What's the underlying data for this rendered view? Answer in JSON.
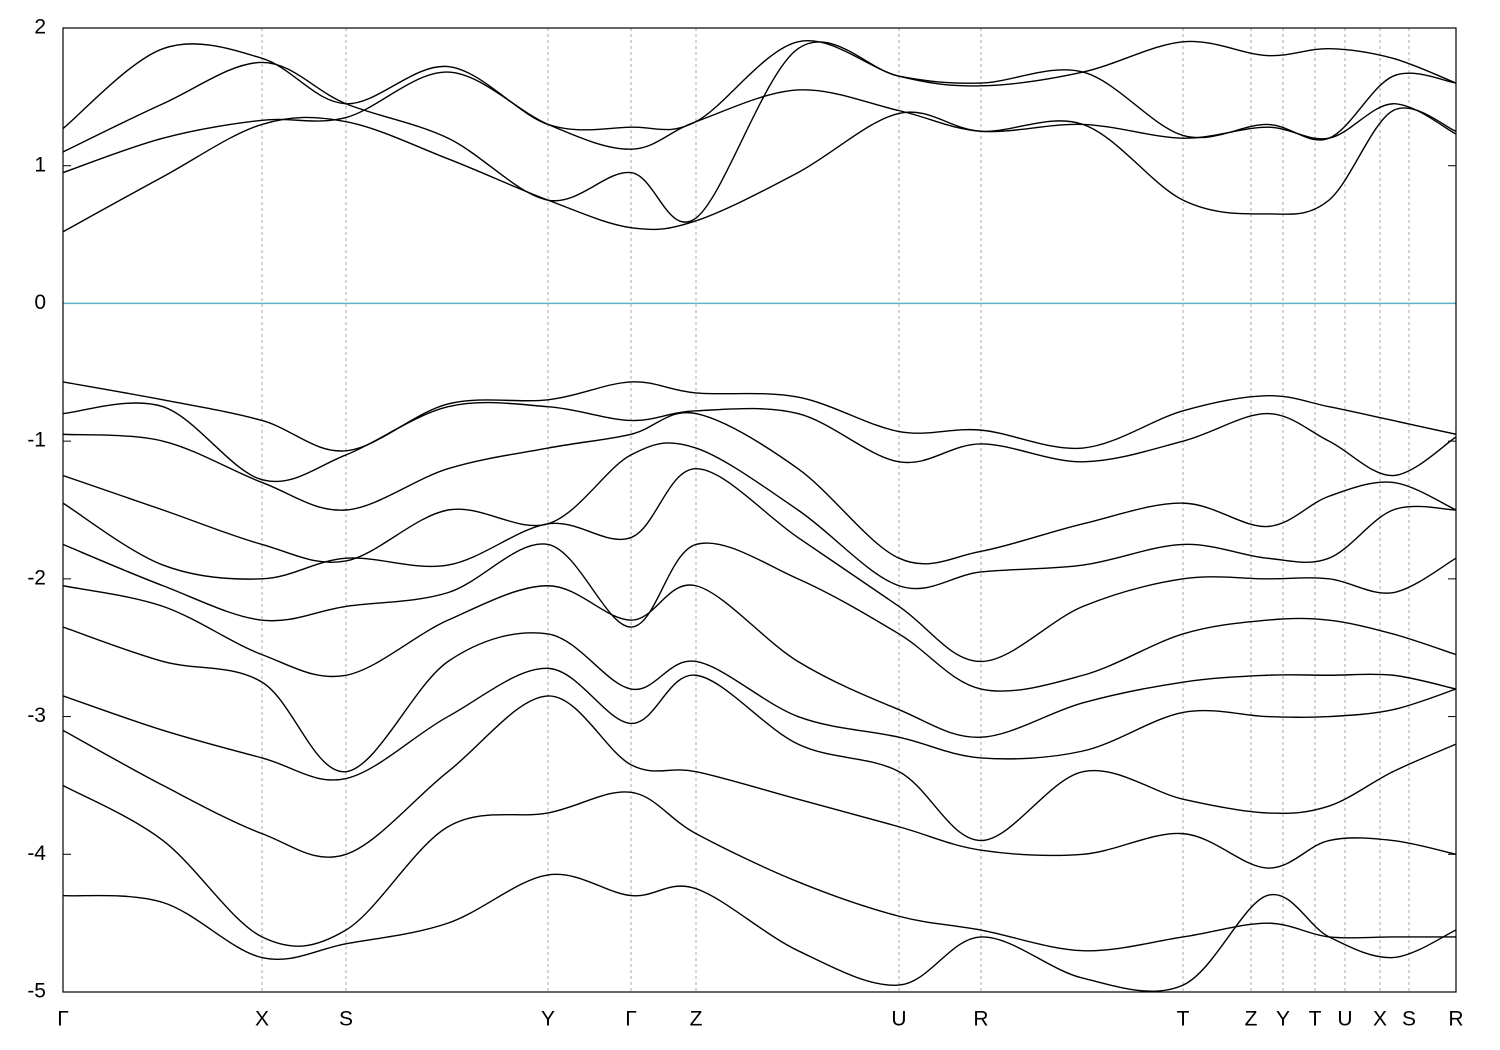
{
  "chart_data": {
    "type": "line",
    "x": [
      0,
      100,
      199,
      283,
      385,
      485,
      568,
      633,
      735,
      836,
      918,
      1020,
      1120,
      1204,
      1266,
      1330,
      1393
    ],
    "xlim": [
      0,
      1393
    ],
    "xticks": [
      {
        "value": 0,
        "label": "Γ"
      },
      {
        "value": 199,
        "label": "X"
      },
      {
        "value": 283,
        "label": "S"
      },
      {
        "value": 485,
        "label": "Y"
      },
      {
        "value": 568,
        "label": "Γ"
      },
      {
        "value": 633,
        "label": "Z"
      },
      {
        "value": 836,
        "label": "U"
      },
      {
        "value": 918,
        "label": "R"
      },
      {
        "value": 1120,
        "label": "T"
      },
      {
        "value": 1188,
        "label": "Z"
      },
      {
        "value": 1220,
        "label": "Y"
      },
      {
        "value": 1252,
        "label": "T"
      },
      {
        "value": 1282,
        "label": "U"
      },
      {
        "value": 1317,
        "label": "X"
      },
      {
        "value": 1346,
        "label": "S"
      },
      {
        "value": 1393,
        "label": "R"
      }
    ],
    "ylim": [
      -5,
      2
    ],
    "yticks": [
      -5,
      -4,
      -3,
      -2,
      -1,
      0,
      1,
      2
    ],
    "grid": true,
    "reference_line": {
      "value": 0,
      "color": "#5ab4c8"
    },
    "series": [
      {
        "color": "#000000",
        "values": [
          0.52,
          0.92,
          1.3,
          1.32,
          1.05,
          0.75,
          0.55,
          0.6,
          0.95,
          1.38,
          1.25,
          1.3,
          0.75,
          0.65,
          0.75,
          1.4,
          1.25
        ]
      },
      {
        "color": "#000000",
        "values": [
          0.95,
          1.2,
          1.33,
          1.35,
          1.68,
          1.3,
          1.12,
          1.32,
          1.55,
          1.4,
          1.25,
          1.3,
          1.2,
          1.28,
          1.2,
          1.45,
          1.23
        ]
      },
      {
        "color": "#000000",
        "values": [
          1.1,
          1.45,
          1.75,
          1.45,
          1.2,
          0.75,
          0.95,
          0.62,
          1.85,
          1.65,
          1.6,
          1.68,
          1.22,
          1.3,
          1.2,
          1.65,
          1.6
        ]
      },
      {
        "color": "#000000",
        "values": [
          1.27,
          1.85,
          1.78,
          1.45,
          1.72,
          1.3,
          1.28,
          1.32,
          1.9,
          1.65,
          1.58,
          1.68,
          1.9,
          1.8,
          1.85,
          1.78,
          1.6
        ]
      },
      {
        "color": "#000000",
        "values": [
          -0.57,
          -0.7,
          -0.85,
          -1.07,
          -0.73,
          -0.7,
          -0.57,
          -0.65,
          -0.68,
          -0.93,
          -0.92,
          -1.05,
          -0.78,
          -0.67,
          -0.75,
          -0.85,
          -0.95
        ]
      },
      {
        "color": "#000000",
        "values": [
          -0.8,
          -0.75,
          -1.28,
          -1.1,
          -0.75,
          -0.75,
          -0.85,
          -0.78,
          -0.8,
          -1.15,
          -1.02,
          -1.15,
          -1.0,
          -0.8,
          -1.0,
          -1.25,
          -0.97
        ]
      },
      {
        "color": "#000000",
        "values": [
          -0.95,
          -1.0,
          -1.3,
          -1.5,
          -1.2,
          -1.05,
          -0.95,
          -0.8,
          -1.2,
          -1.85,
          -1.8,
          -1.6,
          -1.45,
          -1.62,
          -1.4,
          -1.3,
          -1.5
        ]
      },
      {
        "color": "#000000",
        "values": [
          -1.25,
          -1.5,
          -1.75,
          -1.87,
          -1.5,
          -1.6,
          -1.1,
          -1.05,
          -1.5,
          -2.05,
          -1.95,
          -1.9,
          -1.75,
          -1.85,
          -1.85,
          -1.5,
          -1.5
        ]
      },
      {
        "color": "#000000",
        "values": [
          -1.45,
          -1.9,
          -2.0,
          -1.85,
          -1.9,
          -1.6,
          -1.7,
          -1.2,
          -1.7,
          -2.2,
          -2.6,
          -2.2,
          -2.0,
          -2.0,
          -2.0,
          -2.1,
          -1.85
        ]
      },
      {
        "color": "#000000",
        "values": [
          -1.75,
          -2.05,
          -2.3,
          -2.2,
          -2.1,
          -1.75,
          -2.35,
          -1.75,
          -2.0,
          -2.4,
          -2.8,
          -2.7,
          -2.4,
          -2.3,
          -2.3,
          -2.4,
          -2.55
        ]
      },
      {
        "color": "#000000",
        "values": [
          -2.05,
          -2.2,
          -2.55,
          -2.7,
          -2.3,
          -2.05,
          -2.3,
          -2.05,
          -2.6,
          -2.95,
          -3.15,
          -2.9,
          -2.75,
          -2.7,
          -2.7,
          -2.7,
          -2.8
        ]
      },
      {
        "color": "#000000",
        "values": [
          -2.35,
          -2.6,
          -2.75,
          -3.4,
          -2.6,
          -2.4,
          -2.8,
          -2.6,
          -3.0,
          -3.15,
          -3.3,
          -3.25,
          -2.97,
          -3.0,
          -3.0,
          -2.95,
          -2.8
        ]
      },
      {
        "color": "#000000",
        "values": [
          -2.85,
          -3.1,
          -3.3,
          -3.45,
          -3.0,
          -2.65,
          -3.05,
          -2.7,
          -3.2,
          -3.4,
          -3.9,
          -3.4,
          -3.6,
          -3.7,
          -3.65,
          -3.4,
          -3.2
        ]
      },
      {
        "color": "#000000",
        "values": [
          -3.1,
          -3.5,
          -3.85,
          -4.0,
          -3.4,
          -2.85,
          -3.35,
          -3.4,
          -3.6,
          -3.8,
          -3.97,
          -4.0,
          -3.85,
          -4.1,
          -3.9,
          -3.9,
          -4.0
        ]
      },
      {
        "color": "#000000",
        "values": [
          -3.5,
          -3.9,
          -4.6,
          -4.55,
          -3.8,
          -3.7,
          -3.55,
          -3.85,
          -4.2,
          -4.45,
          -4.55,
          -4.7,
          -4.6,
          -4.5,
          -4.6,
          -4.6,
          -4.6
        ]
      },
      {
        "color": "#000000",
        "values": [
          -4.3,
          -4.35,
          -4.75,
          -4.65,
          -4.5,
          -4.15,
          -4.3,
          -4.25,
          -4.7,
          -4.95,
          -4.6,
          -4.9,
          -4.95,
          -4.3,
          -4.6,
          -4.75,
          -4.55
        ]
      }
    ]
  }
}
